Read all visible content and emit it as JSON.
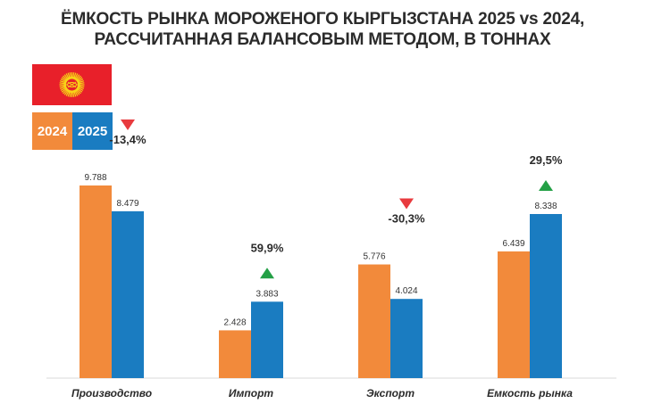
{
  "title_line1": "ЁМКОСТЬ РЫНКА МОРОЖЕНОГО КЫРГЫЗСТАНА 2025 vs 2024,",
  "title_line2": "РАССЧИТАННАЯ БАЛАНСОВЫМ МЕТОДОМ, В ТОННАХ",
  "colors": {
    "y2024": "#f28a3b",
    "y2025": "#1a7cc1",
    "up": "#24a046",
    "down": "#e83a3e",
    "flag": "#e8202a",
    "sun": "#f7d417"
  },
  "legend": [
    {
      "label": "2024",
      "color": "#f28a3b"
    },
    {
      "label": "2025",
      "color": "#1a7cc1"
    }
  ],
  "chart_data": {
    "type": "bar",
    "categories": [
      "Производство",
      "Импорт",
      "Экспорт",
      "Емкость рынка"
    ],
    "series": [
      {
        "name": "2024",
        "values": [
          9788,
          2428,
          5776,
          6439
        ],
        "labels": [
          "9.788",
          "2.428",
          "5.776",
          "6.439"
        ]
      },
      {
        "name": "2025",
        "values": [
          8479,
          3883,
          4024,
          8338
        ],
        "labels": [
          "8.479",
          "3.883",
          "4.024",
          "8.338"
        ]
      }
    ],
    "changes": [
      {
        "text": "-13,4%",
        "direction": "down"
      },
      {
        "text": "59,9%",
        "direction": "up"
      },
      {
        "text": "-30,3%",
        "direction": "down"
      },
      {
        "text": "29,5%",
        "direction": "up"
      }
    ],
    "ylim": [
      0,
      10000
    ],
    "grid": false
  }
}
